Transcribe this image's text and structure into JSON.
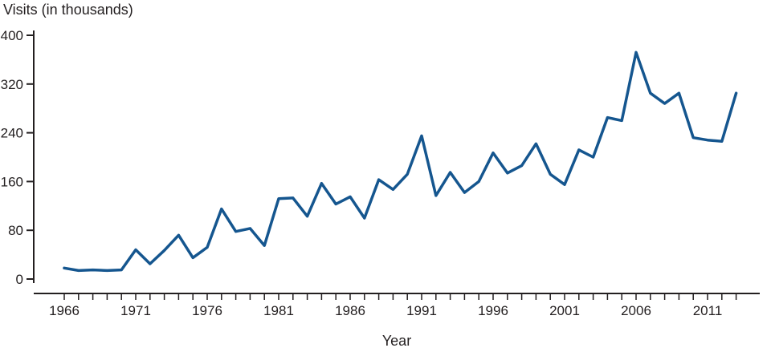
{
  "chart_data": {
    "type": "line",
    "title": "",
    "ylabel": "Visits (in thousands)",
    "xlabel": "Year",
    "ylim": [
      0,
      400
    ],
    "yticks": [
      0,
      80,
      160,
      240,
      320,
      400
    ],
    "xticks_labeled": [
      1966,
      1971,
      1976,
      1981,
      1986,
      1991,
      1996,
      2001,
      2006,
      2011
    ],
    "x": [
      1966,
      1967,
      1968,
      1969,
      1970,
      1971,
      1972,
      1973,
      1974,
      1975,
      1976,
      1977,
      1978,
      1979,
      1980,
      1981,
      1982,
      1983,
      1984,
      1985,
      1986,
      1987,
      1988,
      1989,
      1990,
      1991,
      1992,
      1993,
      1994,
      1995,
      1996,
      1997,
      1998,
      1999,
      2000,
      2001,
      2002,
      2003,
      2004,
      2005,
      2006,
      2007,
      2008,
      2009,
      2010,
      2011,
      2012,
      2013
    ],
    "values": [
      18,
      14,
      15,
      14,
      15,
      48,
      25,
      47,
      72,
      35,
      52,
      115,
      78,
      83,
      55,
      132,
      133,
      103,
      157,
      123,
      135,
      100,
      163,
      147,
      172,
      235,
      137,
      175,
      142,
      160,
      207,
      174,
      186,
      222,
      172,
      155,
      212,
      200,
      265,
      260,
      372,
      305,
      288,
      305,
      232,
      228,
      226,
      305
    ],
    "series_name": "Visits",
    "line_color": "#15568f",
    "axis_color": "#231f20",
    "text_color": "#231f20",
    "grid": "off",
    "legend": "none"
  }
}
